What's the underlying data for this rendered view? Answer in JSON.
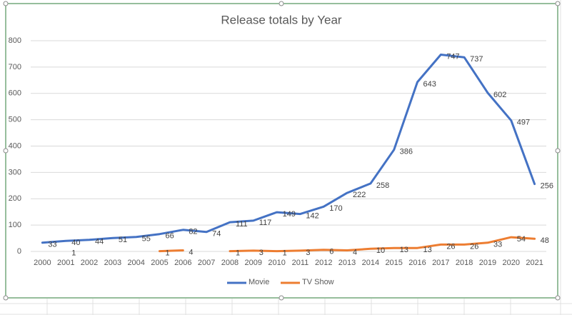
{
  "chart_data": {
    "type": "line",
    "title": "Release totals by Year",
    "categories": [
      "2000",
      "2001",
      "2002",
      "2003",
      "2004",
      "2005",
      "2006",
      "2007",
      "2008",
      "2009",
      "2010",
      "2011",
      "2012",
      "2013",
      "2014",
      "2015",
      "2016",
      "2017",
      "2018",
      "2019",
      "2020",
      "2021"
    ],
    "series": [
      {
        "name": "Movie",
        "color": "#4472c4",
        "values": [
          33,
          40,
          44,
          51,
          55,
          66,
          82,
          74,
          111,
          117,
          149,
          142,
          170,
          222,
          258,
          386,
          643,
          747,
          737,
          602,
          497,
          256
        ]
      },
      {
        "name": "TV Show",
        "color": "#ed7d31",
        "values": [
          null,
          1,
          null,
          null,
          null,
          1,
          4,
          null,
          1,
          3,
          1,
          3,
          6,
          4,
          10,
          13,
          13,
          26,
          26,
          33,
          54,
          48
        ]
      }
    ],
    "ylim": [
      0,
      800
    ],
    "yticks": [
      0,
      100,
      200,
      300,
      400,
      500,
      600,
      700,
      800
    ],
    "grid": true,
    "legend": "bottom"
  }
}
